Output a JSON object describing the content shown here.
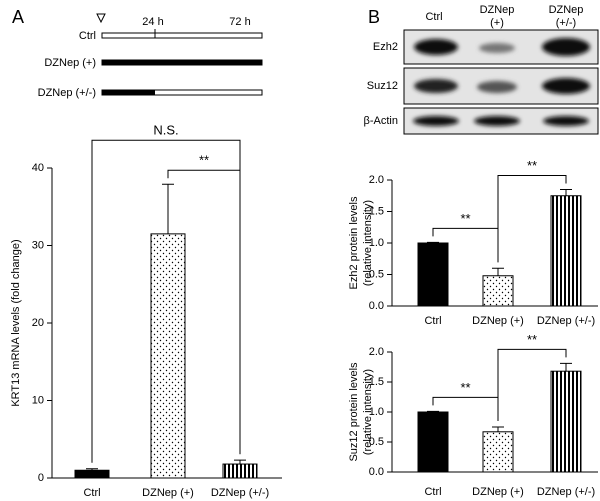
{
  "panel_labels": [
    "A",
    "B"
  ],
  "timeline": {
    "rows": [
      "Ctrl",
      "DZNep (+)",
      "DZNep (+/-)"
    ],
    "time_labels": [
      "24 h",
      "72 h"
    ]
  },
  "blot": {
    "lanes": [
      [
        "Ctrl"
      ],
      [
        "DZNep",
        "(+)"
      ],
      [
        "DZNep",
        "(+/-)"
      ]
    ],
    "proteins": [
      "Ezh2",
      "Suz12",
      "β-Actin"
    ]
  },
  "chart_data": [
    {
      "type": "bar",
      "ylabel": [
        "KRT13 mRNA levels (fold change)"
      ],
      "categories": [
        "Ctrl",
        "DZNep (+)",
        "DZNep (+/-)"
      ],
      "values": [
        1.0,
        31.5,
        1.8
      ],
      "errors": [
        0.2,
        6.4,
        0.5
      ],
      "fills": [
        "solid",
        "dots",
        "stripes"
      ],
      "ylim": [
        0,
        40
      ],
      "yticks": [
        0,
        10,
        20,
        30,
        40
      ],
      "annotations": [
        {
          "text": "**",
          "between": [
            1,
            2
          ]
        },
        {
          "text": "N.S.",
          "between": [
            0,
            2
          ]
        }
      ]
    },
    {
      "type": "bar",
      "ylabel": [
        "Ezh2 protein levels",
        "(relative intensity)"
      ],
      "categories": [
        "Ctrl",
        "DZNep (+)",
        "DZNep (+/-)"
      ],
      "values": [
        1.0,
        0.48,
        1.75
      ],
      "errors": [
        0.01,
        0.12,
        0.1
      ],
      "fills": [
        "solid",
        "dots",
        "stripes"
      ],
      "ylim": [
        0,
        2
      ],
      "yticks": [
        {
          "value": 0,
          "label": "0.0"
        },
        0.5,
        {
          "value": 1,
          "label": "1.0"
        },
        1.5,
        {
          "value": 2,
          "label": "2.0"
        }
      ],
      "annotations": [
        {
          "text": "**",
          "between": [
            0,
            1
          ]
        },
        {
          "text": "**",
          "between": [
            1,
            2
          ]
        }
      ]
    },
    {
      "type": "bar",
      "ylabel": [
        "Suz12 protein levels",
        "(relative intensity)"
      ],
      "categories": [
        "Ctrl",
        "DZNep (+)",
        "DZNep (+/-)"
      ],
      "values": [
        1.0,
        0.67,
        1.68
      ],
      "errors": [
        0.01,
        0.08,
        0.13
      ],
      "fills": [
        "solid",
        "dots",
        "stripes"
      ],
      "ylim": [
        0,
        2
      ],
      "yticks": [
        {
          "value": 0,
          "label": "0.0"
        },
        0.5,
        {
          "value": 1,
          "label": "1.0"
        },
        1.5,
        {
          "value": 2,
          "label": "2.0"
        }
      ],
      "annotations": [
        {
          "text": "**",
          "between": [
            0,
            1
          ]
        },
        {
          "text": "**",
          "between": [
            1,
            2
          ]
        }
      ]
    }
  ]
}
